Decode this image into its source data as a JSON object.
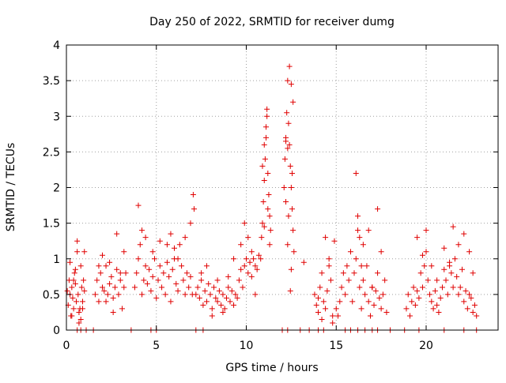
{
  "chart_data": {
    "type": "scatter",
    "title": "Day 250 of 2022, SRMTID for receiver dumg",
    "xlabel": "GPS time / hours",
    "ylabel": "SRMTID / TECUs",
    "xlim": [
      0,
      24
    ],
    "ylim": [
      0,
      4
    ],
    "xticks": [
      0,
      5,
      10,
      15,
      20
    ],
    "yticks": [
      0,
      0.5,
      1,
      1.5,
      2,
      2.5,
      3,
      3.5,
      4
    ],
    "xtick_labels": [
      "0",
      "5",
      "10",
      "15",
      "20"
    ],
    "ytick_labels": [
      "0",
      "0.5",
      "1",
      "1.5",
      "2",
      "2.5",
      "3",
      "3.5",
      "4"
    ],
    "grid": true,
    "legend": "none",
    "marker": "plus",
    "color": "#e00000",
    "series": [
      {
        "x": [
          0.05,
          0.1,
          0.15,
          0.2,
          0.25,
          0.3,
          0.35,
          0.4,
          0.45,
          0.5,
          0.55,
          0.6,
          0.65,
          0.7,
          0.75,
          0.8,
          0.85,
          0.9,
          0.95,
          1.0,
          0.2,
          0.4,
          0.6,
          0.8,
          1.0,
          0.3,
          0.5,
          0.7,
          0.9,
          1.6,
          1.7,
          1.8,
          1.9,
          2.0,
          2.1,
          2.2,
          2.3,
          2.4,
          2.5,
          2.6,
          2.7,
          2.8,
          2.9,
          3.0,
          3.1,
          3.2,
          3.3,
          1.8,
          2.0,
          2.2,
          2.4,
          2.6,
          2.8,
          3.0,
          3.2,
          3.8,
          3.9,
          4.0,
          4.1,
          4.2,
          4.3,
          4.4,
          4.5,
          4.6,
          4.7,
          4.8,
          4.9,
          5.0,
          5.1,
          5.2,
          5.3,
          5.4,
          5.5,
          5.6,
          5.7,
          5.8,
          5.9,
          6.0,
          6.1,
          6.2,
          6.3,
          6.4,
          6.5,
          6.6,
          6.7,
          6.8,
          6.9,
          7.0,
          4.0,
          4.2,
          4.4,
          4.8,
          5.2,
          5.6,
          5.8,
          6.0,
          6.2,
          6.6,
          6.9,
          7.05,
          7.1,
          7.2,
          7.3,
          7.4,
          7.5,
          7.6,
          7.7,
          7.8,
          7.9,
          8.0,
          8.1,
          8.2,
          8.3,
          8.4,
          8.5,
          8.6,
          8.7,
          8.8,
          8.9,
          9.0,
          9.1,
          9.2,
          9.3,
          9.4,
          9.5,
          7.5,
          7.8,
          8.1,
          8.4,
          8.7,
          9.0,
          9.3,
          9.6,
          9.7,
          9.8,
          9.9,
          10.0,
          10.1,
          10.2,
          10.3,
          10.4,
          10.5,
          10.6,
          10.7,
          9.7,
          9.9,
          10.1,
          10.3,
          10.5,
          10.8,
          10.85,
          10.9,
          10.95,
          11.0,
          11.05,
          11.1,
          11.15,
          11.2,
          11.25,
          11.3,
          11.35,
          10.9,
          11.0,
          11.1,
          11.2,
          11.3,
          11.0,
          11.15,
          12.1,
          12.15,
          12.2,
          12.25,
          12.3,
          12.35,
          12.4,
          12.45,
          12.5,
          12.55,
          12.6,
          12.65,
          12.2,
          12.3,
          12.4,
          12.5,
          12.6,
          12.3,
          12.5,
          12.35,
          12.55,
          12.2,
          12.45,
          13.2,
          13.8,
          13.9,
          14.0,
          14.1,
          14.2,
          14.3,
          14.4,
          14.5,
          14.6,
          14.7,
          14.8,
          14.9,
          14.0,
          14.2,
          14.4,
          14.6,
          14.8,
          15.0,
          15.1,
          15.2,
          15.3,
          15.4,
          15.5,
          15.6,
          15.7,
          15.8,
          15.9,
          16.0,
          16.1,
          16.2,
          16.3,
          16.4,
          16.5,
          16.6,
          16.7,
          16.8,
          16.9,
          17.0,
          17.1,
          17.2,
          17.3,
          17.4,
          17.5,
          17.6,
          17.7,
          17.8,
          16.1,
          16.2,
          16.3,
          16.4,
          16.5,
          16.8,
          17.0,
          17.3,
          17.5,
          18.9,
          19.0,
          19.1,
          19.2,
          19.3,
          19.4,
          19.5,
          19.6,
          19.7,
          19.8,
          19.9,
          20.0,
          20.1,
          20.2,
          20.3,
          20.4,
          20.5,
          20.6,
          20.7,
          20.8,
          20.9,
          21.0,
          21.1,
          21.2,
          21.3,
          21.4,
          21.5,
          21.6,
          21.7,
          21.8,
          21.9,
          22.0,
          22.1,
          22.2,
          22.3,
          22.4,
          22.5,
          22.6,
          22.7,
          22.8,
          19.5,
          19.8,
          20.0,
          20.3,
          20.6,
          21.0,
          21.3,
          21.5,
          21.8,
          22.1,
          22.4,
          22.6,
          0.6,
          0.8,
          1.1,
          1.5,
          3.6,
          4.7,
          5.0,
          7.2,
          7.6,
          12.0,
          12.3,
          13.0,
          13.5,
          14.0,
          14.3,
          15.5,
          15.8,
          16.2,
          16.6,
          17.0,
          17.3,
          18.0,
          18.8,
          19.6,
          21.0,
          22.1,
          22.8
        ],
        "y": [
          0.55,
          0.35,
          0.7,
          0.5,
          0.2,
          0.6,
          0.45,
          0.3,
          0.8,
          0.65,
          0.4,
          1.1,
          0.5,
          0.25,
          0.3,
          0.15,
          0.6,
          0.4,
          0.7,
          0.55,
          0.95,
          0.7,
          1.25,
          0.9,
          1.1,
          0.2,
          0.85,
          0.1,
          0.3,
          0.5,
          0.7,
          0.4,
          0.8,
          0.6,
          0.55,
          0.9,
          0.5,
          0.65,
          0.75,
          0.45,
          0.6,
          0.85,
          0.5,
          0.7,
          0.3,
          0.6,
          0.8,
          0.9,
          1.05,
          0.4,
          0.95,
          0.25,
          1.35,
          0.8,
          1.1,
          0.6,
          0.8,
          1.0,
          1.2,
          0.5,
          0.7,
          0.9,
          0.65,
          0.85,
          0.55,
          0.75,
          1.0,
          0.45,
          0.7,
          0.9,
          0.6,
          0.8,
          0.5,
          0.95,
          0.75,
          0.4,
          0.85,
          1.0,
          0.65,
          0.55,
          1.2,
          0.9,
          0.7,
          0.5,
          0.8,
          0.6,
          0.75,
          0.5,
          1.75,
          1.4,
          1.3,
          1.1,
          1.25,
          1.2,
          1.35,
          1.15,
          1.0,
          1.3,
          1.5,
          1.9,
          1.7,
          0.5,
          0.6,
          0.45,
          0.7,
          0.35,
          0.55,
          0.4,
          0.65,
          0.5,
          0.3,
          0.6,
          0.45,
          0.4,
          0.55,
          0.35,
          0.5,
          0.3,
          0.45,
          0.6,
          0.4,
          0.55,
          0.35,
          0.5,
          0.45,
          0.8,
          0.9,
          0.2,
          0.7,
          0.25,
          0.75,
          1.0,
          0.7,
          0.85,
          0.6,
          0.9,
          1.0,
          0.8,
          0.95,
          0.75,
          1.0,
          0.9,
          0.85,
          1.05,
          1.2,
          1.5,
          1.3,
          1.1,
          0.5,
          1.0,
          1.3,
          1.5,
          1.8,
          2.1,
          2.4,
          2.7,
          3.0,
          2.2,
          1.9,
          1.6,
          1.4,
          2.3,
          2.6,
          2.85,
          1.7,
          1.2,
          1.45,
          3.1,
          2.0,
          2.4,
          2.65,
          3.05,
          3.5,
          2.9,
          2.6,
          2.3,
          2.0,
          1.7,
          1.4,
          1.1,
          1.8,
          2.55,
          3.7,
          3.45,
          3.2,
          1.2,
          0.85,
          1.6,
          2.2,
          2.7,
          0.55,
          0.95,
          0.5,
          0.35,
          0.25,
          0.6,
          0.8,
          0.4,
          0.3,
          0.55,
          1.0,
          0.7,
          0.2,
          1.25,
          0.45,
          0.15,
          1.3,
          0.9,
          0.1,
          0.3,
          0.2,
          0.4,
          0.6,
          0.8,
          0.5,
          0.9,
          0.7,
          1.1,
          0.4,
          0.8,
          1.0,
          1.4,
          0.6,
          0.3,
          0.7,
          0.5,
          0.9,
          0.4,
          0.2,
          0.6,
          0.35,
          0.55,
          0.8,
          0.45,
          0.3,
          0.5,
          0.7,
          0.25,
          2.2,
          1.6,
          1.3,
          0.9,
          1.2,
          1.4,
          0.6,
          1.7,
          1.1,
          0.3,
          0.5,
          0.2,
          0.4,
          0.6,
          0.35,
          0.55,
          0.45,
          0.8,
          0.6,
          0.9,
          1.1,
          0.7,
          0.5,
          0.4,
          0.3,
          0.55,
          0.35,
          0.25,
          0.45,
          0.6,
          0.85,
          0.7,
          0.5,
          0.95,
          0.8,
          0.6,
          1.0,
          0.75,
          0.5,
          0.6,
          0.85,
          0.4,
          0.55,
          0.3,
          0.5,
          0.45,
          0.25,
          0.35,
          0.2,
          1.3,
          1.05,
          1.4,
          0.9,
          0.7,
          1.15,
          0.9,
          1.45,
          1.2,
          1.35,
          1.1,
          0.8,
          0,
          0,
          0,
          0,
          0,
          0,
          0,
          0,
          0,
          0,
          0,
          0,
          0,
          0,
          0,
          0,
          0,
          0,
          0,
          0,
          0,
          0,
          0,
          0,
          0,
          0,
          0
        ]
      }
    ]
  }
}
